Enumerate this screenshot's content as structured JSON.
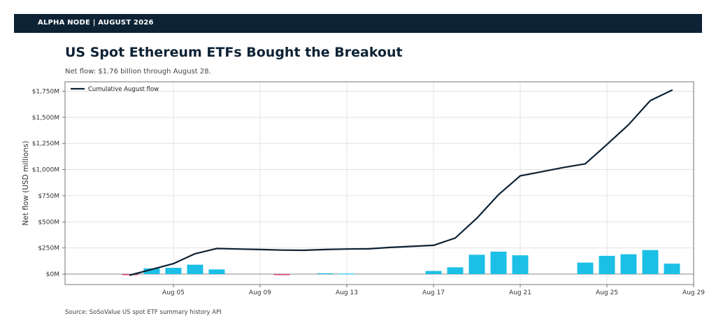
{
  "header": {
    "banner": "ALPHA NODE | AUGUST 2026"
  },
  "title": "US Spot Ethereum ETFs Bought the Breakout",
  "subtitle": "Net flow: $1.76 billion through August 28.",
  "source": "Source: SoSoValue US spot ETF summary history API",
  "colors": {
    "line": "#0d2234",
    "bar_positive": "#1cbfe6",
    "bar_negative": "#e0457b",
    "banner": "#0d2234"
  },
  "chart_data": {
    "type": "bar",
    "xlabel": "",
    "ylabel": "Net flow (USD millions)",
    "x_ticks": [
      "Aug 05",
      "Aug 09",
      "Aug 13",
      "Aug 17",
      "Aug 21",
      "Aug 25",
      "Aug 29"
    ],
    "y_ticks": [
      "$0M",
      "$250M",
      "$500M",
      "$750M",
      "$1,000M",
      "$1,250M",
      "$1,500M",
      "$1,750M"
    ],
    "ylim": [
      -100,
      1840
    ],
    "xlim": [
      "2026-07-31",
      "2026-08-29"
    ],
    "grid": true,
    "legend": "top-left",
    "dates": [
      "2026-08-03",
      "2026-08-04",
      "2026-08-05",
      "2026-08-06",
      "2026-08-07",
      "2026-08-10",
      "2026-08-11",
      "2026-08-12",
      "2026-08-13",
      "2026-08-14",
      "2026-08-17",
      "2026-08-18",
      "2026-08-19",
      "2026-08-20",
      "2026-08-21",
      "2026-08-24",
      "2026-08-25",
      "2026-08-26",
      "2026-08-27",
      "2026-08-28"
    ],
    "daily_flow": [
      -10,
      55,
      60,
      90,
      45,
      -10,
      0,
      8,
      5,
      0,
      30,
      65,
      185,
      215,
      180,
      110,
      175,
      190,
      230,
      100
    ],
    "series": [
      {
        "name": "Cumulative August flow",
        "type": "line",
        "x": [
          "2026-08-03",
          "2026-08-04",
          "2026-08-05",
          "2026-08-06",
          "2026-08-07",
          "2026-08-08",
          "2026-08-09",
          "2026-08-10",
          "2026-08-11",
          "2026-08-12",
          "2026-08-13",
          "2026-08-14",
          "2026-08-15",
          "2026-08-16",
          "2026-08-17",
          "2026-08-18",
          "2026-08-19",
          "2026-08-20",
          "2026-08-21",
          "2026-08-22",
          "2026-08-23",
          "2026-08-24",
          "2026-08-25",
          "2026-08-26",
          "2026-08-27",
          "2026-08-28"
        ],
        "values": [
          -10,
          45,
          100,
          195,
          245,
          240,
          235,
          230,
          228,
          235,
          240,
          242,
          255,
          265,
          275,
          345,
          535,
          760,
          940,
          980,
          1020,
          1055,
          1240,
          1430,
          1660,
          1760
        ]
      }
    ]
  }
}
